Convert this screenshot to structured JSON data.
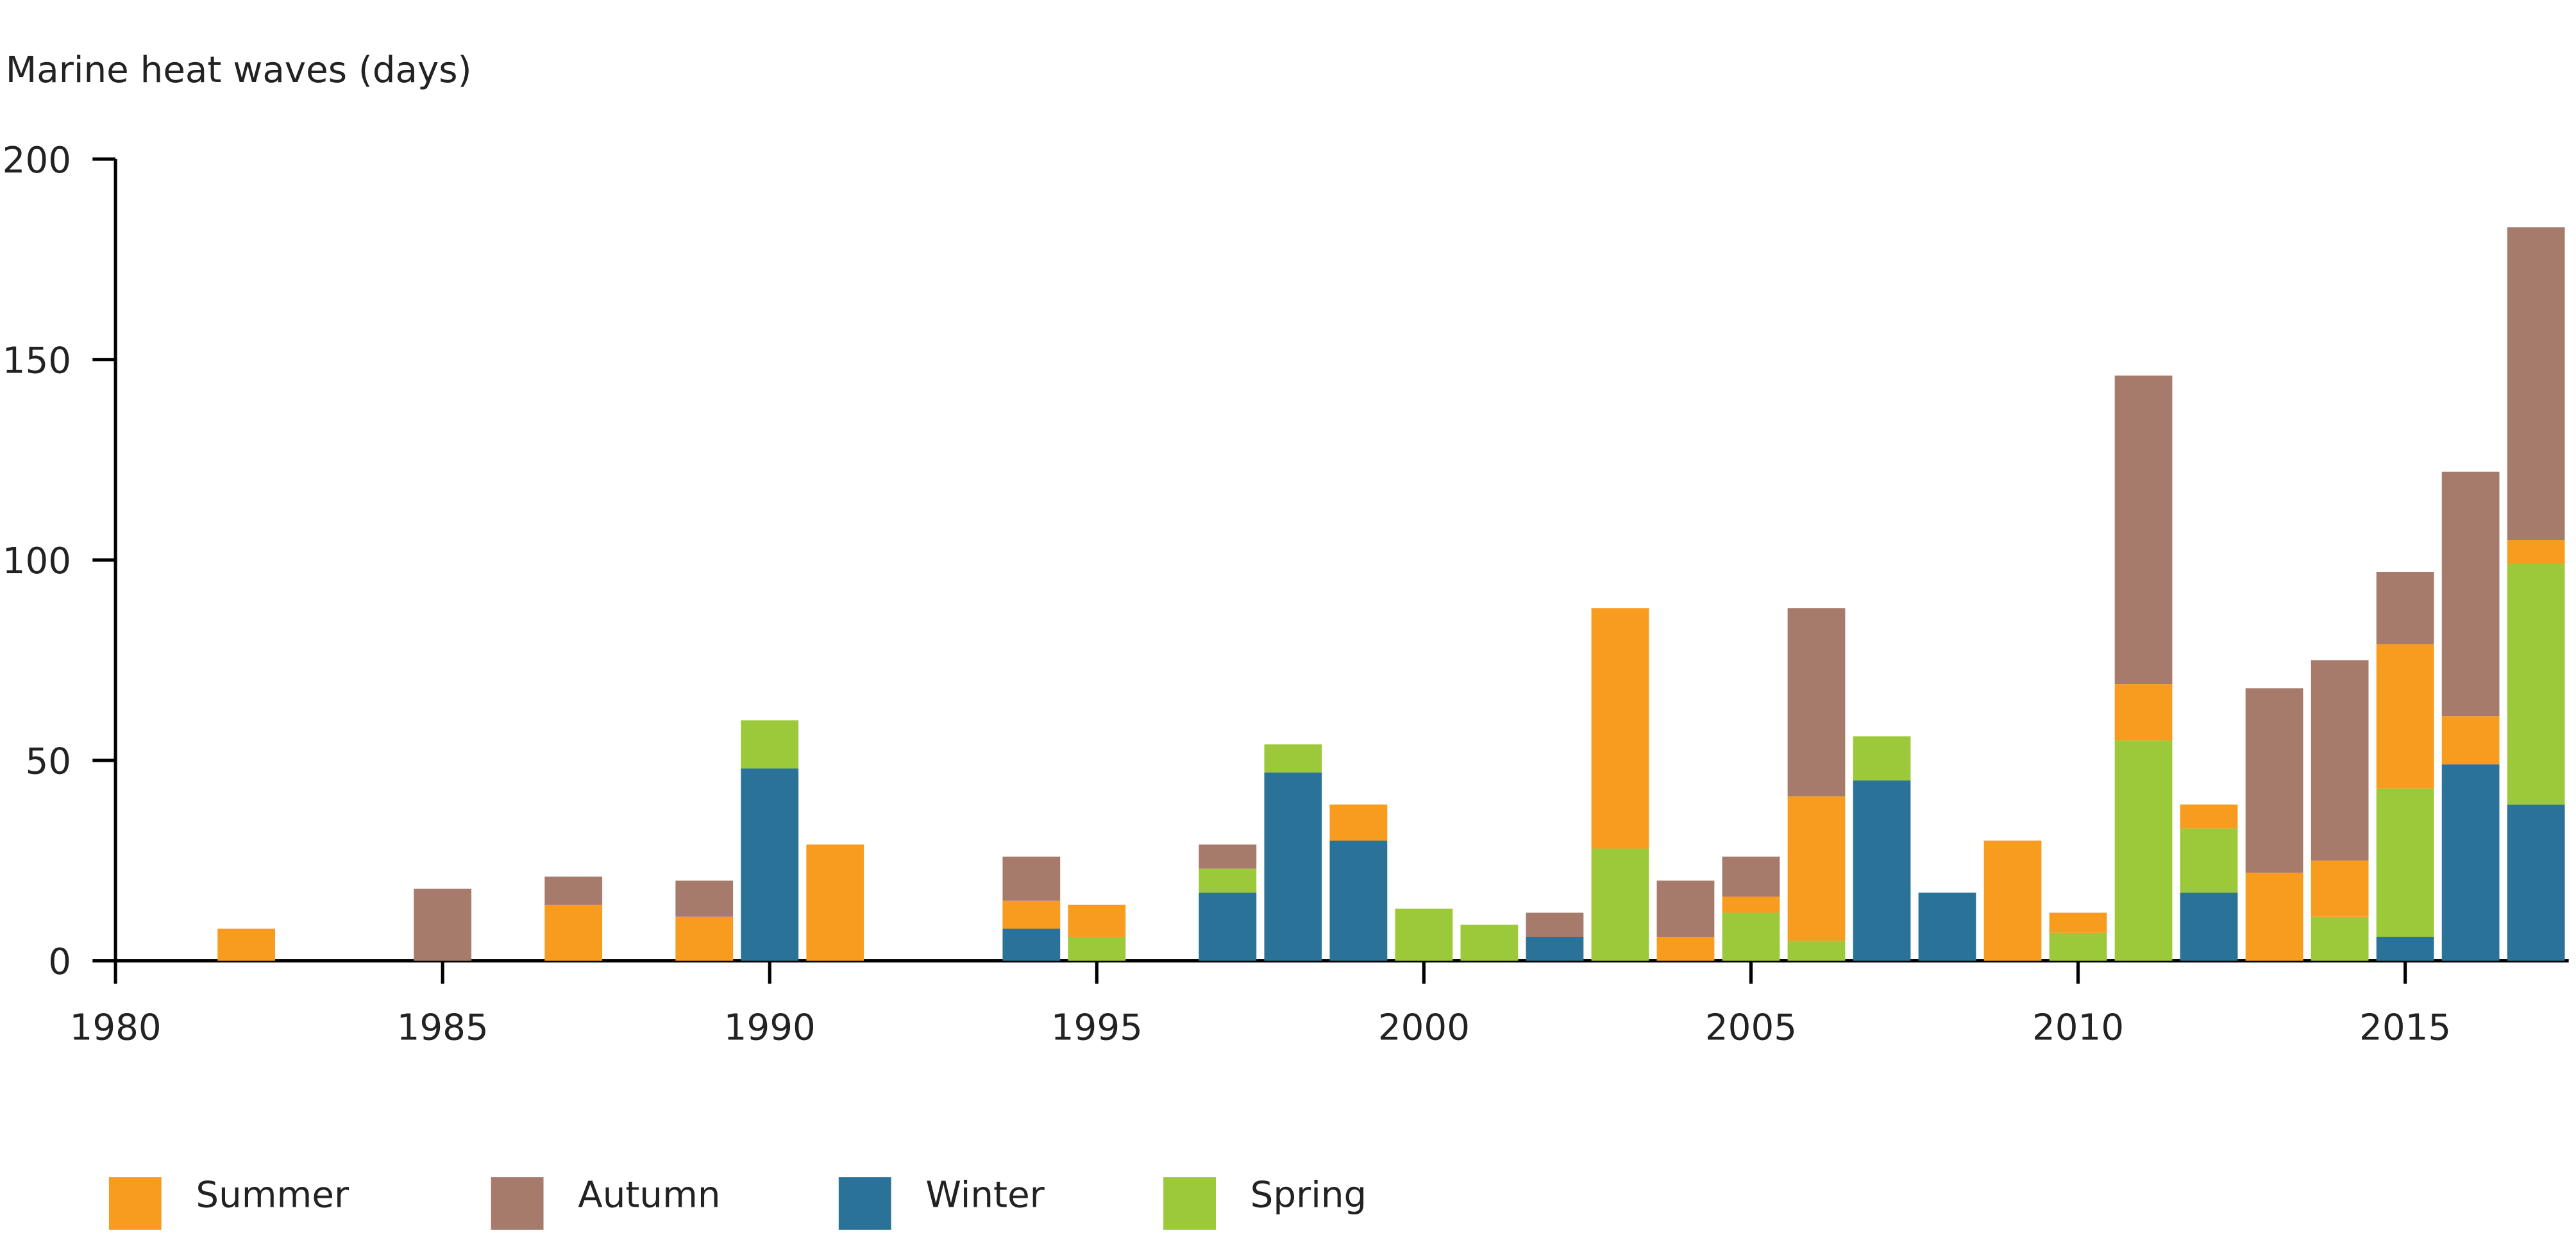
{
  "chart_data": {
    "type": "stacked-bar",
    "y_label": "Marine heat waves (days)",
    "x": [
      1982,
      1985,
      1987,
      1989,
      1990,
      1991,
      1994,
      1995,
      1997,
      1998,
      1999,
      2000,
      2001,
      2002,
      2003,
      2004,
      2005,
      2006,
      2007,
      2008,
      2009,
      2010,
      2011,
      2012,
      2013,
      2014,
      2015,
      2016,
      2017
    ],
    "series": [
      {
        "name": "Winter",
        "color": "#2a7297",
        "values": [
          null,
          null,
          null,
          null,
          48,
          null,
          8,
          null,
          17,
          47,
          30,
          null,
          null,
          6,
          null,
          null,
          null,
          null,
          45,
          17,
          null,
          null,
          null,
          17,
          null,
          null,
          6,
          49,
          39
        ]
      },
      {
        "name": "Spring",
        "color": "#9bc93a",
        "values": [
          null,
          null,
          null,
          null,
          12,
          null,
          null,
          6,
          6,
          7,
          null,
          13,
          9,
          null,
          28,
          null,
          12,
          5,
          11,
          null,
          null,
          7,
          55,
          16,
          null,
          11,
          37,
          null,
          60
        ]
      },
      {
        "name": "Summer",
        "color": "#f89c20",
        "values": [
          8,
          null,
          14,
          11,
          null,
          29,
          7,
          8,
          null,
          null,
          9,
          null,
          null,
          null,
          60,
          6,
          4,
          36,
          null,
          null,
          30,
          5,
          14,
          6,
          22,
          14,
          36,
          12,
          6
        ]
      },
      {
        "name": "Autumn",
        "color": "#a67b6b",
        "values": [
          null,
          18,
          7,
          9,
          null,
          null,
          11,
          null,
          6,
          null,
          null,
          null,
          null,
          6,
          null,
          14,
          10,
          47,
          null,
          null,
          null,
          null,
          77,
          null,
          46,
          50,
          18,
          61,
          78
        ]
      }
    ],
    "xlim": [
      1980,
      2017.5
    ],
    "xticks": [
      1980,
      1985,
      1990,
      1995,
      2000,
      2005,
      2010,
      2015
    ],
    "ylim": [
      0,
      200
    ],
    "yticks": [
      0,
      50,
      100,
      150,
      200
    ],
    "grid": false
  }
}
